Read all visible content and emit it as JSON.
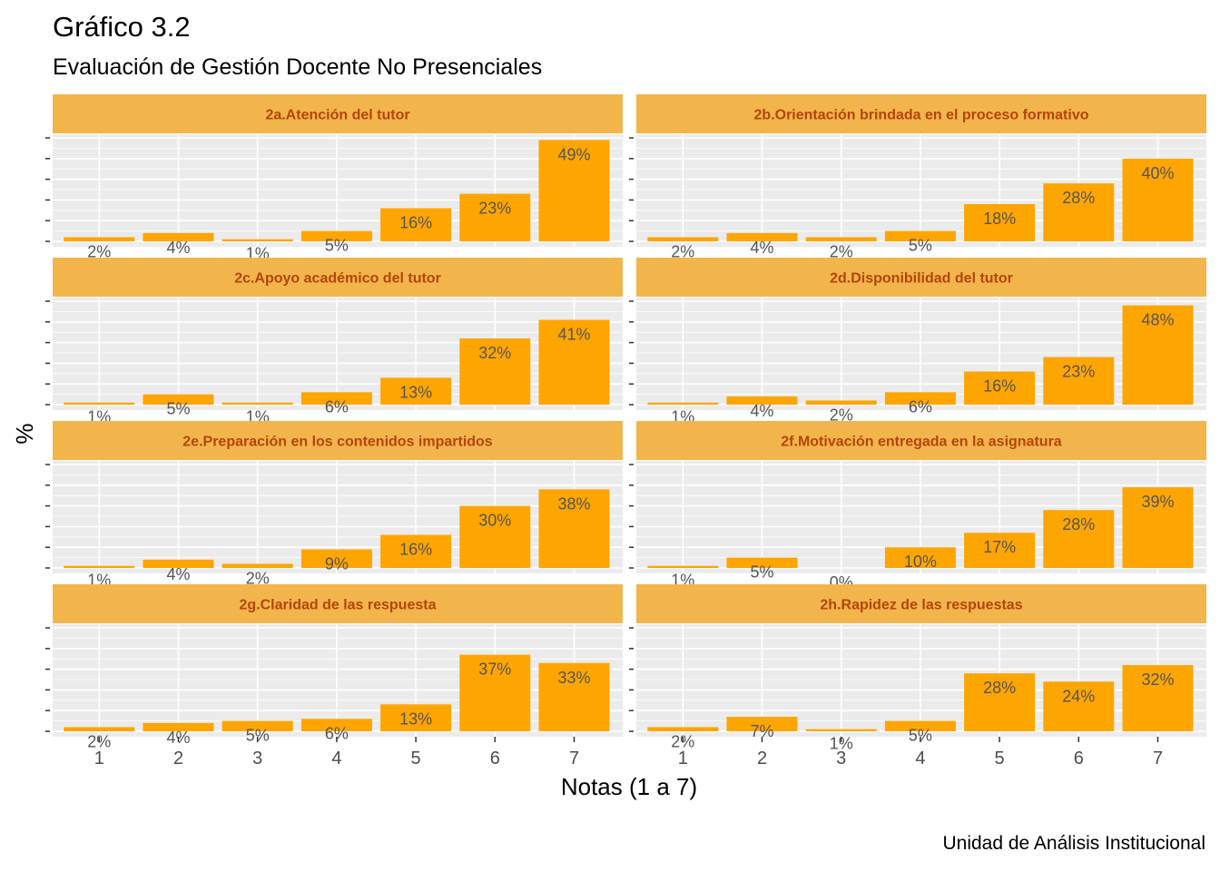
{
  "header": {
    "title": "Gráfico 3.2",
    "subtitle": "Evaluación de Gestión Docente No Presenciales"
  },
  "caption": "Unidad de Análisis Institucional",
  "colors": {
    "bar": "#FFA500",
    "strip_fill": "#F2B54B",
    "strip_text": "#B5440C",
    "panel_bg": "#EBEBEB",
    "grid": "#FFFFFF",
    "label": "#555555"
  },
  "chart_data": {
    "type": "bar",
    "facet_layout": "4 rows x 2 columns",
    "xlabel": "Notas (1 a 7)",
    "ylabel": "%",
    "categories": [
      "1",
      "2",
      "3",
      "4",
      "5",
      "6",
      "7"
    ],
    "ylim": [
      0,
      50
    ],
    "y_tick_labels_shown": false,
    "grid": true,
    "value_suffix": "%",
    "panels": [
      {
        "title": "2a.Atención del tutor",
        "values": [
          2,
          4,
          1,
          5,
          16,
          23,
          49
        ]
      },
      {
        "title": "2b.Orientación brindada en el proceso formativo",
        "values": [
          2,
          4,
          2,
          5,
          18,
          28,
          40
        ]
      },
      {
        "title": "2c.Apoyo académico del tutor",
        "values": [
          1,
          5,
          1,
          6,
          13,
          32,
          41
        ]
      },
      {
        "title": "2d.Disponibilidad del tutor",
        "values": [
          1,
          4,
          2,
          6,
          16,
          23,
          48
        ]
      },
      {
        "title": "2e.Preparación en los contenidos impartidos",
        "values": [
          1,
          4,
          2,
          9,
          16,
          30,
          38
        ]
      },
      {
        "title": "2f.Motivación entregada en la asignatura",
        "values": [
          1,
          5,
          0,
          10,
          17,
          28,
          39
        ]
      },
      {
        "title": "2g.Claridad de las respuesta",
        "values": [
          2,
          4,
          5,
          6,
          13,
          37,
          33
        ]
      },
      {
        "title": "2h.Rapidez de las respuestas",
        "values": [
          2,
          7,
          1,
          5,
          28,
          24,
          32
        ]
      }
    ]
  }
}
